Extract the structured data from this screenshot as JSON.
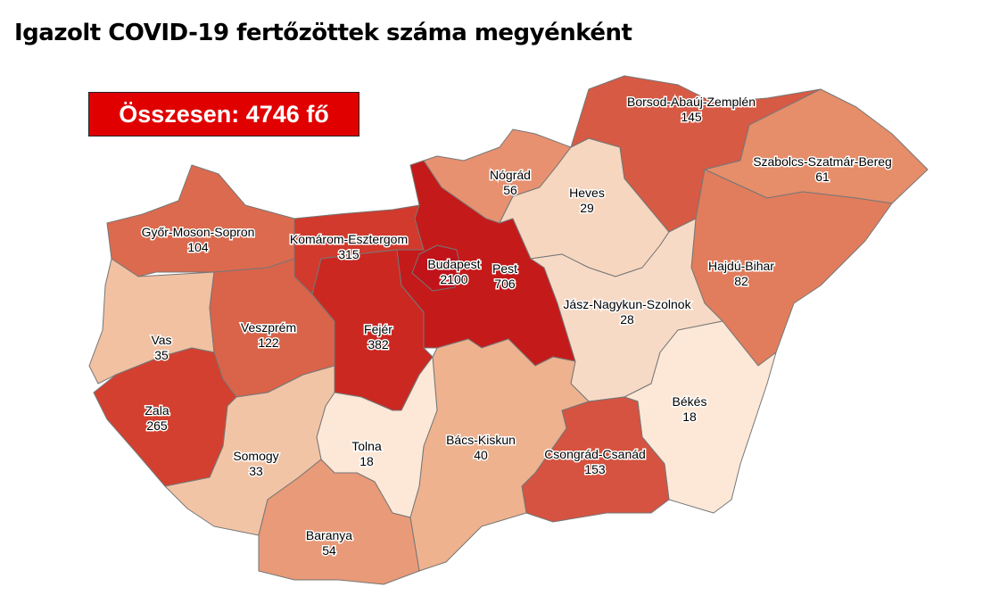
{
  "title": "Igazolt COVID-19 fertőzöttek száma megyénként",
  "total_label": "Összesen: 4746 fő",
  "colors": {
    "total_box": "#e00000"
  },
  "counties": [
    {
      "id": "gyor",
      "name": "Győr-Moson-Sopron",
      "value": "104",
      "color": "#dc6a4e"
    },
    {
      "id": "komarom",
      "name": "Komárom-Esztergom",
      "value": "315",
      "color": "#d13a2c"
    },
    {
      "id": "vas",
      "name": "Vas",
      "value": "35",
      "color": "#f1c1a2"
    },
    {
      "id": "veszprem",
      "name": "Veszprém",
      "value": "122",
      "color": "#d9644a"
    },
    {
      "id": "fejer",
      "name": "Fejér",
      "value": "382",
      "color": "#cb2822"
    },
    {
      "id": "pest",
      "name": "Pest",
      "value": "706",
      "color": "#c51a1a"
    },
    {
      "id": "budapest",
      "name": "Budapest",
      "value": "2100",
      "color": "#c0131a"
    },
    {
      "id": "nograd",
      "name": "Nógrád",
      "value": "56",
      "color": "#e79170"
    },
    {
      "id": "heves",
      "name": "Heves",
      "value": "29",
      "color": "#f6d6bf"
    },
    {
      "id": "borsod",
      "name": "Borsod-Abaúj-Zemplén",
      "value": "145",
      "color": "#d75a44"
    },
    {
      "id": "szabolcs",
      "name": "Szabolcs-Szatmár-Bereg",
      "value": "61",
      "color": "#e68d6a"
    },
    {
      "id": "hajdu",
      "name": "Hajdú-Bihar",
      "value": "82",
      "color": "#e17d5c"
    },
    {
      "id": "jasz",
      "name": "Jász-Nagykun-Szolnok",
      "value": "28",
      "color": "#f7dac5"
    },
    {
      "id": "bekes",
      "name": "Békés",
      "value": "18",
      "color": "#fde8d7"
    },
    {
      "id": "csongrad",
      "name": "Csongrád-Csanád",
      "value": "153",
      "color": "#d55340"
    },
    {
      "id": "bacs",
      "name": "Bács-Kiskun",
      "value": "40",
      "color": "#eeb28f"
    },
    {
      "id": "tolna",
      "name": "Tolna",
      "value": "18",
      "color": "#fde8d7"
    },
    {
      "id": "somogy",
      "name": "Somogy",
      "value": "33",
      "color": "#f2c4a6"
    },
    {
      "id": "zala",
      "name": "Zala",
      "value": "265",
      "color": "#d4402f"
    },
    {
      "id": "baranya",
      "name": "Baranya",
      "value": "54",
      "color": "#e99a78"
    }
  ]
}
